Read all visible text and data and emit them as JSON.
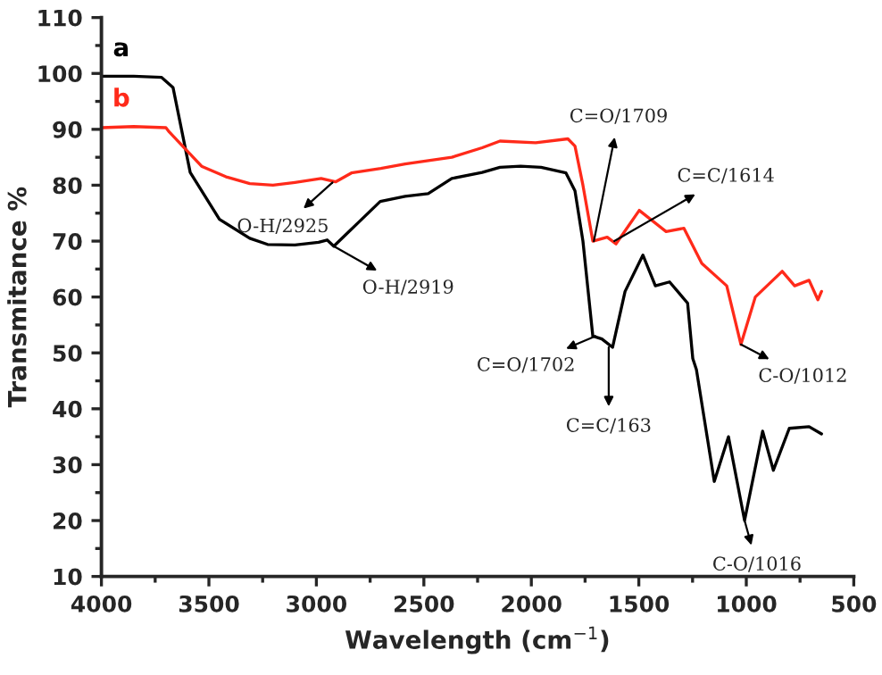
{
  "chart_data": {
    "type": "line",
    "xlabel": "Wavelength (cm$^{−1}$)",
    "ylabel": "Transmitance %",
    "xlim": [
      4000,
      500
    ],
    "xticks": [
      4000,
      3500,
      3000,
      2500,
      2000,
      1500,
      1000,
      500
    ],
    "ylim": [
      10,
      110
    ],
    "yticks": [
      10,
      20,
      30,
      40,
      50,
      60,
      70,
      80,
      90,
      100,
      110
    ],
    "grid": false,
    "legend": false,
    "marker": "none",
    "line_style": "solid",
    "series": [
      {
        "name": "a",
        "color": "#000000",
        "x": [
          4000,
          3850,
          3720,
          3667,
          3587,
          3451,
          3310,
          3227,
          3100,
          2990,
          2950,
          2919,
          2800,
          2703,
          2587,
          2480,
          2370,
          2229,
          2146,
          2050,
          1955,
          1839,
          1797,
          1760,
          1714,
          1672,
          1622,
          1564,
          1481,
          1423,
          1357,
          1273,
          1249,
          1232,
          1149,
          1083,
          1008,
          924,
          874,
          800,
          708,
          650
        ],
        "values": [
          99.5,
          99.5,
          99.3,
          97.5,
          82.3,
          73.9,
          70.5,
          69.4,
          69.3,
          69.8,
          70.2,
          69.1,
          73.5,
          77.1,
          78,
          78.5,
          81.2,
          82.3,
          83.2,
          83.4,
          83.2,
          82.2,
          79,
          70,
          53,
          52.5,
          51,
          61,
          67.5,
          62,
          62.7,
          58.9,
          49,
          47,
          27,
          35,
          20,
          36,
          29,
          36.5,
          36.8,
          35.5
        ]
      },
      {
        "name": "b",
        "color": "#ff2a1a",
        "x": [
          4000,
          3850,
          3700,
          3684,
          3534,
          3420,
          3310,
          3202,
          3100,
          2978,
          2911,
          2837,
          2700,
          2587,
          2370,
          2229,
          2146,
          1980,
          1830,
          1797,
          1760,
          1714,
          1647,
          1606,
          1498,
          1373,
          1290,
          1207,
          1091,
          1025,
          958,
          833,
          775,
          708,
          667,
          650
        ],
        "values": [
          90.3,
          90.5,
          90.3,
          89.5,
          83.4,
          81.5,
          80.3,
          80,
          80.5,
          81.2,
          80.6,
          82.2,
          83,
          83.8,
          85,
          86.7,
          87.9,
          87.6,
          88.3,
          87,
          80,
          70,
          70.7,
          69.5,
          75.5,
          71.7,
          72.3,
          66,
          62,
          51.5,
          60,
          64.6,
          62,
          63,
          59.5,
          61
        ]
      }
    ],
    "annotations": [
      {
        "text": "O-H/2925",
        "x": 2925,
        "y": 80.5
      },
      {
        "text": "O-H/2919",
        "x": 2919,
        "y": 69.1
      },
      {
        "text": "C=O/1709",
        "x": 1709,
        "y": 70
      },
      {
        "text": "C=C/1614",
        "x": 1614,
        "y": 70
      },
      {
        "text": "C=O/1702",
        "x": 1702,
        "y": 53
      },
      {
        "text": "C=C/163",
        "x": 1640,
        "y": 51
      },
      {
        "text": "C-O/1012",
        "x": 1025,
        "y": 51.5
      },
      {
        "text": "C-O/1016",
        "x": 1008,
        "y": 20
      }
    ]
  }
}
